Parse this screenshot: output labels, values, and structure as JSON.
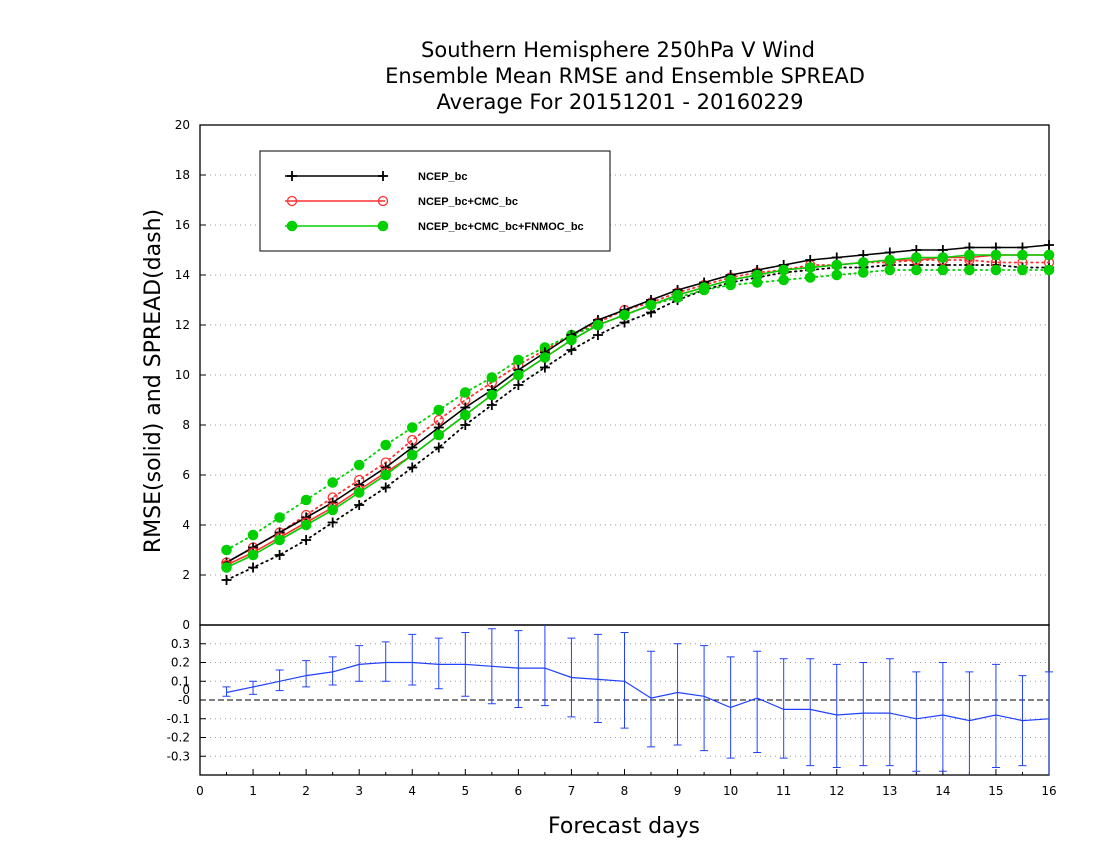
{
  "chart_data": {
    "type": "line",
    "title_lines": [
      "Southern Hemisphere 250hPa V Wind",
      "Ensemble Mean RMSE and Ensemble SPREAD",
      "Average For 20151201 - 20160229"
    ],
    "xlabel": "Forecast days",
    "ylabel": "RMSE(solid) and SPREAD(dash)",
    "xlim": [
      0,
      16
    ],
    "ylim_top": [
      0,
      20
    ],
    "ylim_bottom": [
      -0.4,
      0.4
    ],
    "x_ticks": [
      "0",
      "1",
      "2",
      "3",
      "4",
      "5",
      "6",
      "7",
      "8",
      "9",
      "10",
      "11",
      "12",
      "13",
      "14",
      "15",
      "16"
    ],
    "y_ticks_top": [
      "0",
      "2",
      "4",
      "6",
      "8",
      "10",
      "12",
      "14",
      "16",
      "18",
      "20"
    ],
    "y_ticks_bottom": [
      "-0.3",
      "-0.2",
      "-0.1",
      "-0",
      "0",
      "0.1",
      "0.2",
      "0.3"
    ],
    "grid": "dotted horizontal",
    "legend_position": "top-left",
    "colors": {
      "ncep": "#000000",
      "ncep_cmc": "#ff3030",
      "naefs": "#00d000",
      "diff": "#2040ff"
    },
    "x": [
      0.5,
      1,
      1.5,
      2,
      2.5,
      3,
      3.5,
      4,
      4.5,
      5,
      5.5,
      6,
      6.5,
      7,
      7.5,
      8,
      8.5,
      9,
      9.5,
      10,
      10.5,
      11,
      11.5,
      12,
      12.5,
      13,
      13.5,
      14,
      14.5,
      15,
      15.5,
      16
    ],
    "series": [
      {
        "name": "NCEP_bc",
        "style": "solid",
        "values": [
          2.5,
          3.1,
          3.7,
          4.3,
          4.9,
          5.6,
          6.3,
          7.1,
          7.9,
          8.7,
          9.4,
          10.2,
          10.9,
          11.6,
          12.2,
          12.6,
          13.0,
          13.4,
          13.7,
          14.0,
          14.2,
          14.4,
          14.6,
          14.7,
          14.8,
          14.9,
          15.0,
          15.0,
          15.1,
          15.1,
          15.1,
          15.2
        ]
      },
      {
        "name": "NCEP_bc+CMC_bc",
        "style": "solid",
        "values": [
          2.4,
          2.9,
          3.5,
          4.1,
          4.7,
          5.4,
          6.1,
          6.8,
          7.6,
          8.4,
          9.2,
          10.0,
          10.7,
          11.4,
          12.0,
          12.4,
          12.8,
          13.2,
          13.5,
          13.8,
          14.0,
          14.2,
          14.3,
          14.4,
          14.5,
          14.6,
          14.6,
          14.7,
          14.7,
          14.8,
          14.8,
          14.8
        ]
      },
      {
        "name": "NCEP_bc+CMC_bc+FNMOC_bc",
        "style": "solid",
        "values": [
          2.3,
          2.8,
          3.4,
          4.0,
          4.6,
          5.3,
          6.0,
          6.8,
          7.6,
          8.4,
          9.2,
          10.0,
          10.7,
          11.4,
          12.0,
          12.4,
          12.8,
          13.2,
          13.5,
          13.8,
          14.0,
          14.2,
          14.3,
          14.4,
          14.5,
          14.6,
          14.7,
          14.7,
          14.8,
          14.8,
          14.8,
          14.8
        ]
      },
      {
        "name": "NCEP_bc",
        "style": "dotted",
        "values": [
          1.8,
          2.3,
          2.8,
          3.4,
          4.1,
          4.8,
          5.5,
          6.3,
          7.1,
          8.0,
          8.8,
          9.6,
          10.3,
          11.0,
          11.6,
          12.1,
          12.5,
          13.0,
          13.4,
          13.7,
          13.9,
          14.1,
          14.2,
          14.3,
          14.3,
          14.4,
          14.4,
          14.4,
          14.4,
          14.4,
          14.3,
          14.3
        ]
      },
      {
        "name": "NCEP_bc+CMC_bc",
        "style": "dotted",
        "values": [
          2.5,
          3.1,
          3.7,
          4.4,
          5.1,
          5.8,
          6.5,
          7.4,
          8.2,
          9.0,
          9.7,
          10.4,
          11.0,
          11.6,
          12.1,
          12.6,
          12.9,
          13.3,
          13.6,
          13.9,
          14.1,
          14.2,
          14.4,
          14.4,
          14.5,
          14.5,
          14.6,
          14.6,
          14.6,
          14.5,
          14.5,
          14.5
        ]
      },
      {
        "name": "NCEP_bc+CMC_bc+FNMOC_bc",
        "style": "dotted",
        "values": [
          3.0,
          3.6,
          4.3,
          5.0,
          5.7,
          6.4,
          7.2,
          7.9,
          8.6,
          9.3,
          9.9,
          10.6,
          11.1,
          11.6,
          12.0,
          12.4,
          12.8,
          13.1,
          13.4,
          13.6,
          13.7,
          13.8,
          13.9,
          14.0,
          14.1,
          14.2,
          14.2,
          14.2,
          14.2,
          14.2,
          14.2,
          14.2
        ]
      }
    ],
    "difference": {
      "x": [
        0.5,
        1,
        1.5,
        2,
        2.5,
        3,
        3.5,
        4,
        4.5,
        5,
        5.5,
        6,
        6.5,
        7,
        7.5,
        8,
        8.5,
        9,
        9.5,
        10,
        10.5,
        11,
        11.5,
        12,
        12.5,
        13,
        13.5,
        14,
        14.5,
        15,
        15.5,
        16
      ],
      "mean": [
        0.04,
        0.07,
        0.1,
        0.13,
        0.15,
        0.19,
        0.2,
        0.2,
        0.19,
        0.19,
        0.18,
        0.17,
        0.17,
        0.12,
        0.11,
        0.1,
        0.01,
        0.04,
        0.02,
        -0.04,
        0.01,
        -0.05,
        -0.05,
        -0.08,
        -0.07,
        -0.07,
        -0.1,
        -0.08,
        -0.11,
        -0.08,
        -0.11,
        -0.1
      ],
      "lower": [
        0.02,
        0.03,
        0.05,
        0.07,
        0.08,
        0.1,
        0.1,
        0.08,
        0.06,
        0.02,
        -0.02,
        -0.04,
        -0.03,
        -0.09,
        -0.12,
        -0.15,
        -0.25,
        -0.24,
        -0.27,
        -0.31,
        -0.28,
        -0.31,
        -0.35,
        -0.36,
        -0.35,
        -0.35,
        -0.38,
        -0.38,
        -0.4,
        -0.36,
        -0.35,
        -0.4
      ],
      "upper": [
        0.07,
        0.1,
        0.16,
        0.21,
        0.23,
        0.29,
        0.31,
        0.35,
        0.33,
        0.36,
        0.38,
        0.37,
        0.4,
        0.33,
        0.35,
        0.36,
        0.26,
        0.3,
        0.29,
        0.23,
        0.26,
        0.22,
        0.22,
        0.19,
        0.2,
        0.22,
        0.15,
        0.2,
        0.15,
        0.19,
        0.13,
        0.15
      ]
    }
  }
}
